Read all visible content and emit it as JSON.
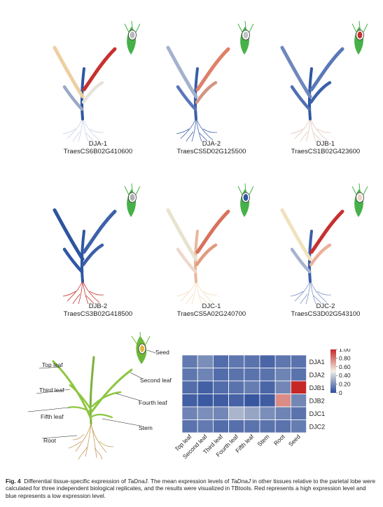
{
  "plants": [
    {
      "name": "DJA-1",
      "id": "TraesCS6B02G410600",
      "colors": {
        "root": "#c9d2e3",
        "stem": "#2f57a3",
        "leaf_left_low": "#9aa8c8",
        "leaf_left_up": "#eecfa0",
        "leaf_right_low": "#e7e3dc",
        "leaf_right_up": "#c7302e",
        "seed": "#b9b9b9"
      }
    },
    {
      "name": "DJA-2",
      "id": "TraesCS5D02G125500",
      "colors": {
        "root": "#3f63ac",
        "stem": "#3a5fa8",
        "leaf_left_low": "#5a78b8",
        "leaf_left_up": "#a4b1cf",
        "leaf_right_low": "#d39482",
        "leaf_right_up": "#e07f68",
        "seed": "#c3c3c3"
      }
    },
    {
      "name": "DJB-1",
      "id": "TraesCS1B02G423600",
      "colors": {
        "root": "#e0c8be",
        "stem": "#2f57a3",
        "leaf_left_low": "#4e6fb3",
        "leaf_left_up": "#6f87bf",
        "leaf_right_low": "#3d61aa",
        "leaf_right_up": "#5a78b8",
        "seed": "#c7302e"
      }
    },
    {
      "name": "DJB-2",
      "id": "TraesCS3B02G418500",
      "colors": {
        "root": "#c7302e",
        "stem": "#2f57a3",
        "leaf_left_low": "#2f57a3",
        "leaf_left_up": "#2d54a0",
        "leaf_right_low": "#3a5fa8",
        "leaf_right_up": "#3d61aa",
        "seed": "#b0b0b0"
      }
    },
    {
      "name": "DJC-1",
      "id": "TraesCS5A02G240700",
      "colors": {
        "root": "#f2dec0",
        "stem": "#e8b89a",
        "leaf_left_low": "#eed8cc",
        "leaf_left_up": "#e7e3cf",
        "leaf_right_low": "#e29a7f",
        "leaf_right_up": "#d9715b",
        "seed": "#2f57a3"
      }
    },
    {
      "name": "DJC-2",
      "id": "TraesCS3D02G543100",
      "colors": {
        "root": "#7f93c4",
        "stem": "#3a5fa8",
        "leaf_left_low": "#a7b3d0",
        "leaf_left_up": "#f0e2bd",
        "leaf_right_low": "#ecb099",
        "leaf_right_up": "#c7302e",
        "seed": "#e9d6c5"
      }
    }
  ],
  "diagram": {
    "labels": {
      "seed": "Seed",
      "top_leaf": "Top leaf",
      "second_leaf": "Second leaf",
      "third_leaf": "Third leaf",
      "fourth_leaf": "Fourth leaf",
      "fifth_leaf": "Fifth leaf",
      "stem": "Stem",
      "root": "Root"
    }
  },
  "chart_data": {
    "type": "heatmap",
    "columns": [
      "Top leaf",
      "Second leaf",
      "Third leaf",
      "Fourth leaf",
      "Fifth leaf",
      "Stem",
      "Root",
      "Seed"
    ],
    "rows": [
      "DJA1",
      "DJA2",
      "DJB1",
      "DJB2",
      "DJC1",
      "DJC2"
    ],
    "values": [
      [
        0.14,
        0.2,
        0.1,
        0.13,
        0.12,
        0.08,
        0.13,
        0.12
      ],
      [
        0.13,
        0.17,
        0.1,
        0.12,
        0.12,
        0.12,
        0.17,
        0.12
      ],
      [
        0.1,
        0.06,
        0.1,
        0.12,
        0.15,
        0.08,
        0.18,
        1.0
      ],
      [
        0.06,
        0.04,
        0.05,
        0.07,
        0.03,
        0.05,
        0.75,
        0.18
      ],
      [
        0.17,
        0.2,
        0.18,
        0.32,
        0.27,
        0.2,
        0.17,
        0.12
      ],
      [
        0.12,
        0.14,
        0.1,
        0.11,
        0.12,
        0.12,
        0.12,
        0.15
      ]
    ],
    "colorbar": {
      "ticks": [
        "1.00",
        "0.80",
        "0.60",
        "0.40",
        "0.20",
        "0"
      ],
      "min": 0,
      "max": 1,
      "low_color": "#2b4c9b",
      "mid_color": "#f1f0e6",
      "high_color": "#c62828"
    }
  },
  "caption": {
    "label": "Fig. 4",
    "text_before": "Differential tissue-specific expression of ",
    "gene1": "TaDnaJ",
    "text_mid": ". The mean expression levels of ",
    "gene2": "TaDnaJ",
    "text_after": " in other tissues relative to the parietal lobe were calculated for three independent biological replicates, and the results were visualized in TBtools. Red represents a high expression level and blue represents a low expression level."
  }
}
